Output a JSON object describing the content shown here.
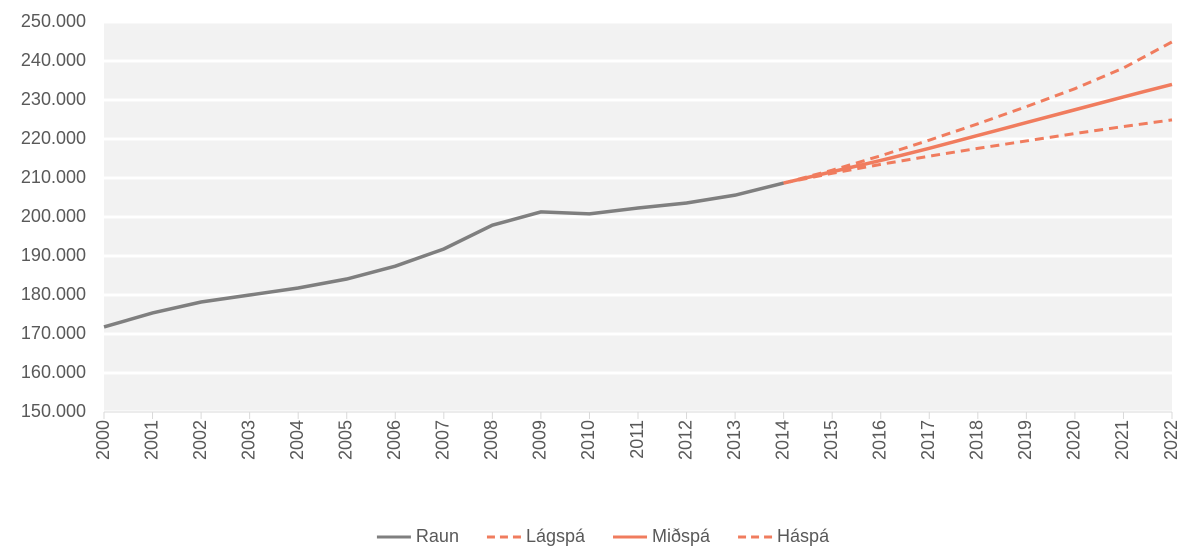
{
  "chart_data": {
    "type": "line",
    "x": [
      2000,
      2001,
      2002,
      2003,
      2004,
      2005,
      2006,
      2007,
      2008,
      2009,
      2010,
      2011,
      2012,
      2013,
      2014,
      2015,
      2016,
      2017,
      2018,
      2019,
      2020,
      2021,
      2022
    ],
    "series": [
      {
        "name": "Raun",
        "color": "#7f7f7f",
        "style": "solid",
        "values": [
          171800,
          175400,
          178200,
          180000,
          181800,
          184100,
          187400,
          191800,
          197900,
          201300,
          200800,
          202300,
          203600,
          205600,
          208700,
          null,
          null,
          null,
          null,
          null,
          null,
          null,
          null
        ]
      },
      {
        "name": "Lágspá",
        "color": "#f07c5e",
        "style": "dashed",
        "values": [
          null,
          null,
          null,
          null,
          null,
          null,
          null,
          null,
          null,
          null,
          null,
          null,
          null,
          null,
          208700,
          211200,
          213500,
          215600,
          217600,
          219500,
          221400,
          223200,
          224900
        ]
      },
      {
        "name": "Miðspá",
        "color": "#f07c5e",
        "style": "solid",
        "values": [
          null,
          null,
          null,
          null,
          null,
          null,
          null,
          null,
          null,
          null,
          null,
          null,
          null,
          null,
          208700,
          211600,
          214500,
          217600,
          220900,
          224200,
          227500,
          230800,
          234000
        ]
      },
      {
        "name": "Háspá",
        "color": "#f07c5e",
        "style": "dashed",
        "values": [
          null,
          null,
          null,
          null,
          null,
          null,
          null,
          null,
          null,
          null,
          null,
          null,
          null,
          null,
          208700,
          212000,
          215700,
          219700,
          223900,
          228300,
          232900,
          238200,
          244900
        ]
      }
    ],
    "xlim": [
      2000,
      2022
    ],
    "xticks": [
      2000,
      2001,
      2002,
      2003,
      2004,
      2005,
      2006,
      2007,
      2008,
      2009,
      2010,
      2011,
      2012,
      2013,
      2014,
      2015,
      2016,
      2017,
      2018,
      2019,
      2020,
      2021,
      2022
    ],
    "ylim": [
      150000,
      250000
    ],
    "yticks": [
      {
        "value": 150000,
        "label": "150.000"
      },
      {
        "value": 160000,
        "label": "160.000"
      },
      {
        "value": 170000,
        "label": "170.000"
      },
      {
        "value": 180000,
        "label": "180.000"
      },
      {
        "value": 190000,
        "label": "190.000"
      },
      {
        "value": 200000,
        "label": "200.000"
      },
      {
        "value": 210000,
        "label": "210.000"
      },
      {
        "value": 220000,
        "label": "220.000"
      },
      {
        "value": 230000,
        "label": "230.000"
      },
      {
        "value": 240000,
        "label": "240.000"
      },
      {
        "value": 250000,
        "label": "250.000"
      }
    ],
    "grid": true,
    "legend": "bottom"
  }
}
